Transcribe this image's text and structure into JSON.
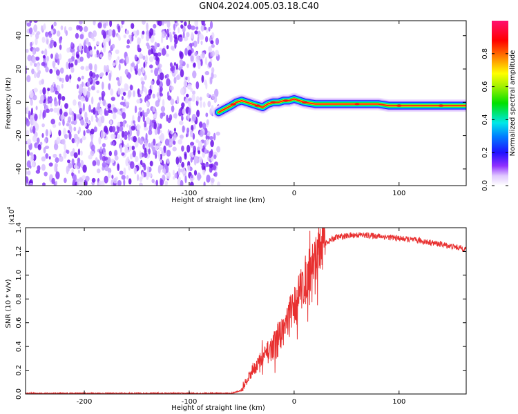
{
  "title": "GN04.2024.005.03.18.C40",
  "chart_data": [
    {
      "type": "heatmap",
      "xlabel": "Height of straight line (km)",
      "ylabel": "Frequency (Hz)",
      "xlim": [
        -256,
        164
      ],
      "ylim": [
        -50,
        49
      ],
      "xticks": [
        -200,
        -100,
        0,
        100
      ],
      "yticks": [
        -40,
        -20,
        0,
        20,
        40
      ],
      "noise_region_x": [
        -256,
        -72
      ],
      "signal_track": {
        "x": [
          -72,
          -66,
          -60,
          -55,
          -50,
          -45,
          -40,
          -35,
          -30,
          -25,
          -20,
          -15,
          -10,
          -5,
          0,
          5,
          10,
          20,
          30,
          40,
          50,
          60,
          70,
          80,
          90,
          100,
          110,
          120,
          130,
          140,
          150,
          160,
          164
        ],
        "y": [
          -6,
          -4,
          -2,
          0,
          1,
          0,
          -1,
          -2,
          -3,
          -1,
          0,
          0,
          1,
          1,
          2,
          1,
          0,
          -1,
          -1,
          -1,
          -1,
          -1,
          -1,
          -1,
          -2,
          -2,
          -2,
          -2,
          -2,
          -2,
          -2,
          -2,
          -2
        ]
      },
      "colorbar": {
        "label": "Normalized spectral amplitude",
        "ticks": [
          "0.0",
          "0.2",
          "0.4",
          "0.6",
          "0.8"
        ],
        "range": [
          0,
          1
        ]
      }
    },
    {
      "type": "line",
      "xlabel": "Height of straight line (km)",
      "ylabel": "SNR (10 * v/v)",
      "scale_label": "(x10",
      "scale_exp": "4",
      "scale_close": ")",
      "xlim": [
        -256,
        164
      ],
      "ylim": [
        0,
        1.4
      ],
      "xticks": [
        -200,
        -100,
        0,
        100
      ],
      "yticks": [
        "0.0",
        "0.2",
        "0.4",
        "0.6",
        "0.8",
        "1.0",
        "1.2",
        "1.4"
      ],
      "color": "#e83030",
      "envelope": {
        "x": [
          -256,
          -60,
          -50,
          -45,
          -40,
          -30,
          -20,
          -10,
          0,
          10,
          20,
          30,
          40,
          50,
          60,
          80,
          100,
          120,
          140,
          164
        ],
        "y": [
          0.005,
          0.005,
          0.03,
          0.12,
          0.2,
          0.3,
          0.4,
          0.55,
          0.75,
          0.95,
          1.15,
          1.27,
          1.32,
          1.33,
          1.34,
          1.33,
          1.31,
          1.29,
          1.26,
          1.22
        ]
      }
    }
  ]
}
